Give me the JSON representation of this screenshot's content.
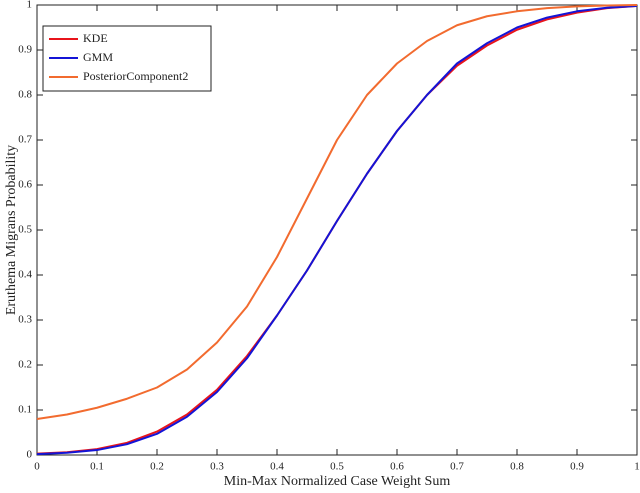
{
  "chart_data": {
    "type": "line",
    "xlabel": "Min-Max Normalized Case Weight Sum",
    "ylabel": "Eruthema Migrans Probability",
    "x": [
      0,
      0.05,
      0.1,
      0.15,
      0.2,
      0.25,
      0.3,
      0.35,
      0.4,
      0.45,
      0.5,
      0.55,
      0.6,
      0.65,
      0.7,
      0.75,
      0.8,
      0.85,
      0.9,
      0.95,
      1
    ],
    "series": [
      {
        "name": "KDE",
        "color": "#e8141b",
        "values": [
          0.003,
          0.006,
          0.013,
          0.027,
          0.052,
          0.09,
          0.145,
          0.22,
          0.31,
          0.41,
          0.52,
          0.625,
          0.72,
          0.8,
          0.865,
          0.91,
          0.945,
          0.968,
          0.983,
          0.993,
          0.998
        ]
      },
      {
        "name": "GMM",
        "color": "#1414d6",
        "values": [
          0.002,
          0.005,
          0.011,
          0.024,
          0.047,
          0.085,
          0.14,
          0.215,
          0.31,
          0.41,
          0.52,
          0.625,
          0.72,
          0.8,
          0.87,
          0.915,
          0.95,
          0.972,
          0.986,
          0.994,
          0.998
        ]
      },
      {
        "name": "PosteriorComponent2",
        "color": "#f26b2f",
        "values": [
          0.08,
          0.09,
          0.105,
          0.125,
          0.15,
          0.19,
          0.25,
          0.33,
          0.44,
          0.57,
          0.7,
          0.8,
          0.87,
          0.92,
          0.955,
          0.975,
          0.986,
          0.993,
          0.997,
          0.999,
          1.0
        ]
      }
    ],
    "xlim": [
      0,
      1
    ],
    "ylim": [
      0,
      1
    ],
    "xticks": [
      0,
      0.1,
      0.2,
      0.3,
      0.4,
      0.5,
      0.6,
      0.7,
      0.8,
      0.9,
      1
    ],
    "yticks": [
      0,
      0.1,
      0.2,
      0.3,
      0.4,
      0.5,
      0.6,
      0.7,
      0.8,
      0.9,
      1
    ],
    "grid": false,
    "legend": "top-left"
  }
}
